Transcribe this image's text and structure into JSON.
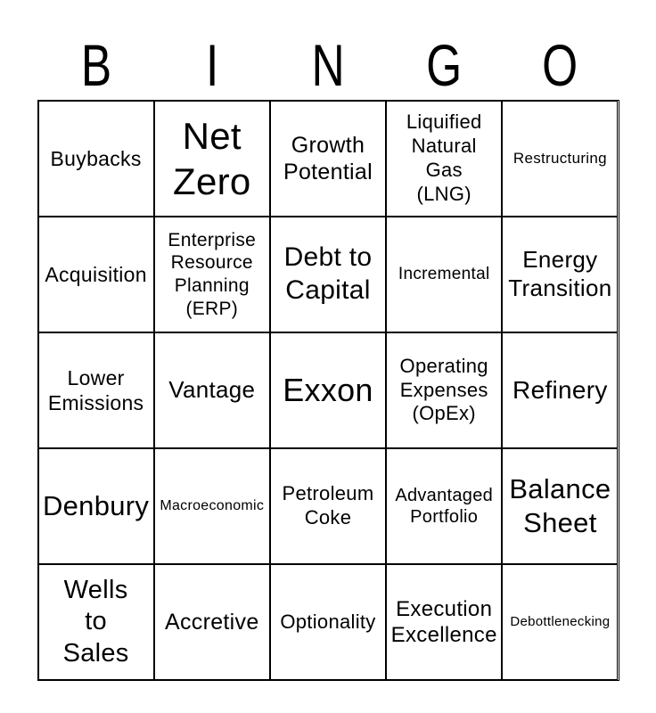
{
  "title": {
    "letters": [
      "B",
      "I",
      "N",
      "G",
      "O"
    ]
  },
  "colors": {
    "background": "#ffffff",
    "text": "#000000",
    "grid_line": "#000000"
  },
  "grid": {
    "rows": 5,
    "cols": 5,
    "cells": [
      {
        "label": "Buybacks"
      },
      {
        "label": "Net\nZero"
      },
      {
        "label": "Growth\nPotential"
      },
      {
        "label": "Liquified\nNatural\nGas\n(LNG)"
      },
      {
        "label": "Restructuring"
      },
      {
        "label": "Acquisition"
      },
      {
        "label": "Enterprise\nResource\nPlanning\n(ERP)"
      },
      {
        "label": "Debt to\nCapital"
      },
      {
        "label": "Incremental"
      },
      {
        "label": "Energy\nTransition"
      },
      {
        "label": "Lower\nEmissions"
      },
      {
        "label": "Vantage"
      },
      {
        "label": "Exxon"
      },
      {
        "label": "Operating\nExpenses\n(OpEx)"
      },
      {
        "label": "Refinery"
      },
      {
        "label": "Denbury"
      },
      {
        "label": "Macroeconomic"
      },
      {
        "label": "Petroleum\nCoke"
      },
      {
        "label": "Advantaged\nPortfolio"
      },
      {
        "label": "Balance\nSheet"
      },
      {
        "label": "Wells\nto\nSales"
      },
      {
        "label": "Accretive"
      },
      {
        "label": "Optionality"
      },
      {
        "label": "Execution\nExcellence"
      },
      {
        "label": "Debottlenecking"
      }
    ]
  }
}
